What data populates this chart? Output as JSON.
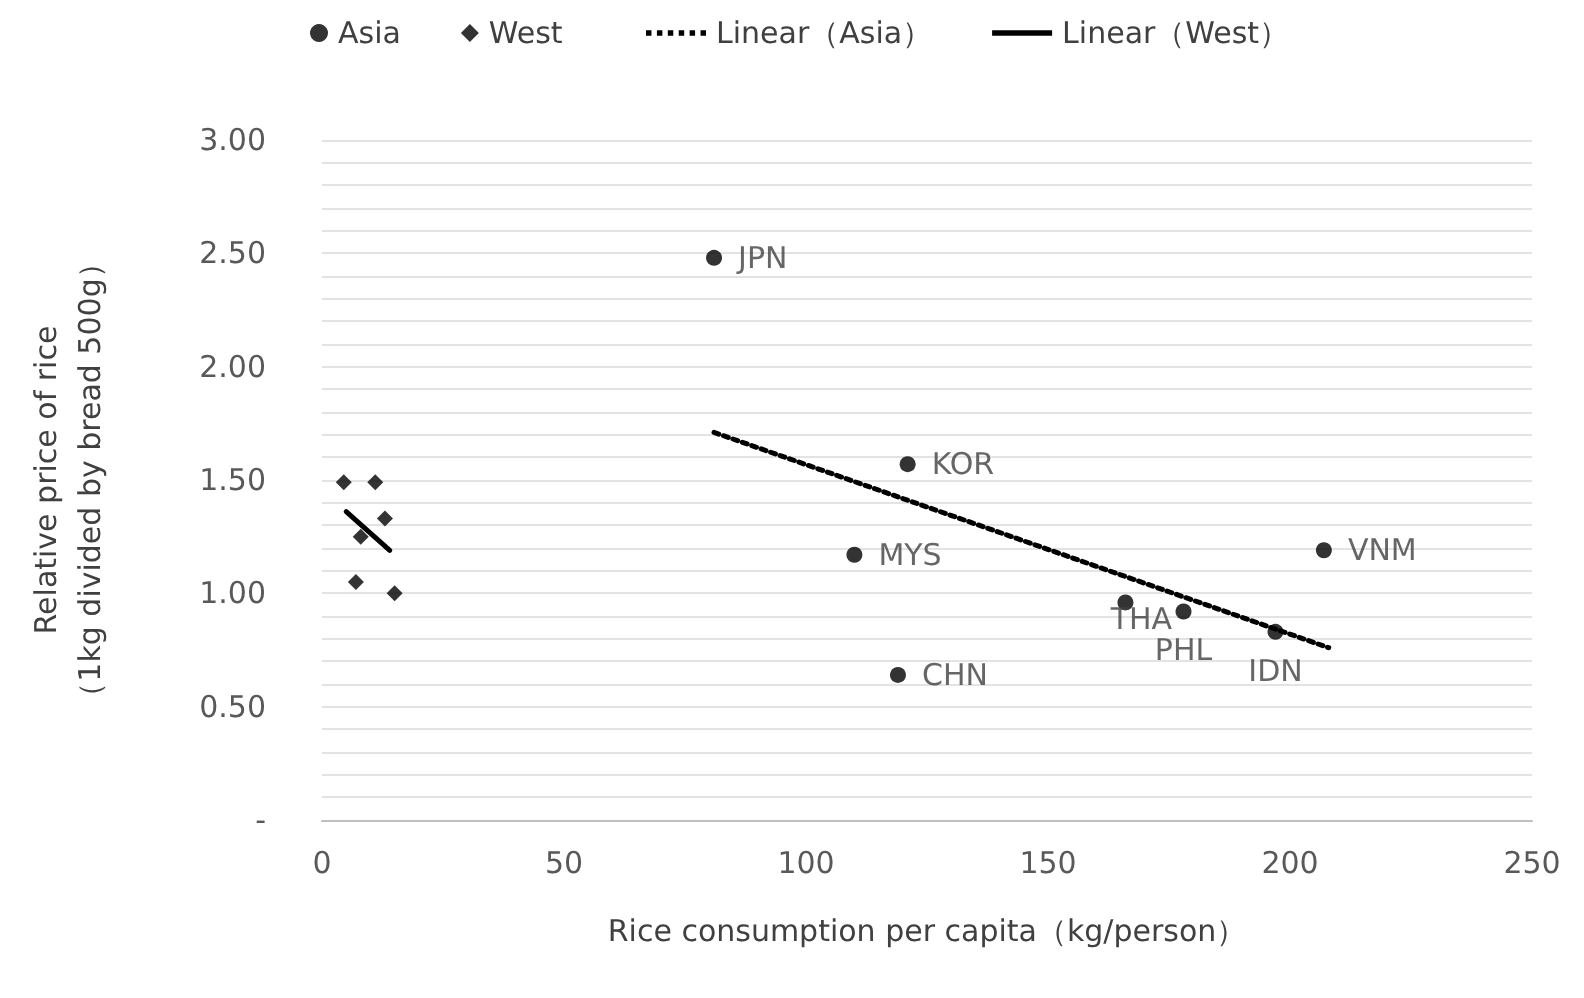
{
  "chart_data": {
    "type": "scatter",
    "xlabel": "Rice consumption per capita（kg/person）",
    "ylabel": "Relative price of rice\n（1kg divided by bread 500g）",
    "xlim": [
      0,
      250
    ],
    "xticks": [
      0,
      50,
      100,
      150,
      200,
      250
    ],
    "ylim": [
      0,
      3
    ],
    "yticks": [
      {
        "value": 0,
        "label": "-"
      },
      {
        "value": 0.1,
        "label": null
      },
      {
        "value": 0.2,
        "label": null
      },
      {
        "value": 0.3,
        "label": null
      },
      {
        "value": 0.4,
        "label": null
      },
      {
        "value": 0.5,
        "label": "0.50"
      },
      {
        "value": 0.6,
        "label": null
      },
      {
        "value": 0.7,
        "label": null
      },
      {
        "value": 0.8,
        "label": null
      },
      {
        "value": 0.9,
        "label": null
      },
      {
        "value": 1,
        "label": "1.00"
      },
      {
        "value": 1.1,
        "label": null
      },
      {
        "value": 1.2,
        "label": null
      },
      {
        "value": 1.3,
        "label": null
      },
      {
        "value": 1.4,
        "label": null
      },
      {
        "value": 1.5,
        "label": "1.50"
      },
      {
        "value": 1.6,
        "label": null
      },
      {
        "value": 1.7,
        "label": null
      },
      {
        "value": 1.8,
        "label": null
      },
      {
        "value": 1.9,
        "label": null
      },
      {
        "value": 2,
        "label": "2.00"
      },
      {
        "value": 2.1,
        "label": null
      },
      {
        "value": 2.2,
        "label": null
      },
      {
        "value": 2.3,
        "label": null
      },
      {
        "value": 2.4,
        "label": null
      },
      {
        "value": 2.5,
        "label": "2.50"
      },
      {
        "value": 2.6,
        "label": null
      },
      {
        "value": 2.7,
        "label": null
      },
      {
        "value": 2.8,
        "label": null
      },
      {
        "value": 2.9,
        "label": null
      },
      {
        "value": 3,
        "label": "3.00"
      }
    ],
    "grid": "y",
    "legend": "top",
    "series": [
      {
        "name": "Asia",
        "marker": "circle",
        "color": "#000000",
        "x": [
          81,
          121,
          110,
          207,
          166,
          178,
          197,
          119
        ],
        "values": [
          2.48,
          1.57,
          1.17,
          1.19,
          0.96,
          0.92,
          0.83,
          0.64
        ],
        "value_labels": [
          "JPN",
          "KOR",
          "MYS",
          "VNM",
          "THA",
          "PHL",
          "IDN",
          "CHN"
        ]
      },
      {
        "name": "West",
        "marker": "diamond",
        "color": "#000000",
        "x": [
          4.5,
          11,
          13,
          8,
          7,
          15
        ],
        "values": [
          1.49,
          1.49,
          1.33,
          1.25,
          1.05,
          1.0
        ]
      },
      {
        "name": "Linear（Asia）",
        "type": "line",
        "marker": "none",
        "line_style": "dotted",
        "color": "#000000",
        "x": [
          81,
          208
        ],
        "values": [
          1.71,
          0.76
        ]
      },
      {
        "name": "Linear（West）",
        "type": "line",
        "marker": "none",
        "line_style": "solid",
        "color": "#000000",
        "x": [
          5,
          14
        ],
        "values": [
          1.36,
          1.19
        ]
      }
    ]
  }
}
